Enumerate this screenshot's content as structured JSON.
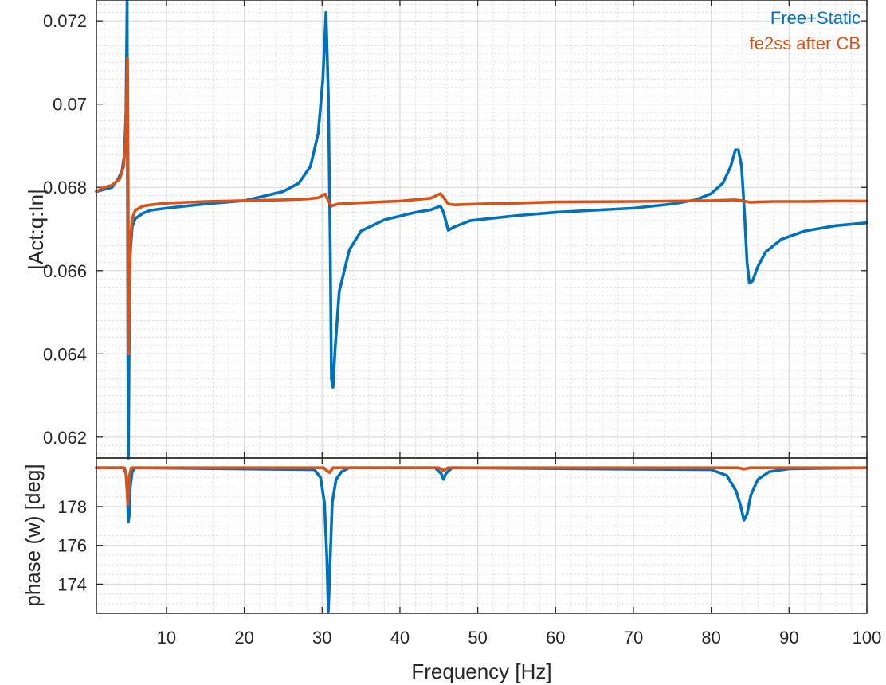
{
  "chart_data": [
    {
      "type": "line",
      "panel": "magnitude",
      "title": "",
      "xlabel": "",
      "ylabel": "|Act:q:In|",
      "xlim": [
        1,
        100
      ],
      "ylim": [
        0.0615,
        0.0725
      ],
      "grid": true,
      "legend_position": "top-right",
      "yticks": [
        0.062,
        0.064,
        0.066,
        0.068,
        0.07,
        0.072
      ],
      "ytick_labels": [
        "0.062",
        "0.064",
        "0.066",
        "0.068",
        "0.07",
        "0.072"
      ],
      "series": [
        {
          "name": "Free+Static",
          "color": "#0072BD",
          "x": [
            1,
            2,
            3,
            3.8,
            4.3,
            4.6,
            4.8,
            4.95,
            5.05,
            5.12,
            5.2,
            5.35,
            5.6,
            6,
            7,
            8,
            10,
            15,
            20,
            25,
            27,
            28.5,
            29.5,
            30.1,
            30.5,
            30.8,
            31.05,
            31.2,
            31.4,
            31.7,
            32.2,
            33.5,
            35,
            38,
            42,
            44,
            45.2,
            45.6,
            46.2,
            47,
            49,
            55,
            60,
            70,
            75,
            78,
            80,
            81.5,
            82.5,
            83.1,
            83.5,
            83.9,
            84.3,
            84.6,
            84.9,
            85.3,
            86,
            87,
            89,
            92,
            96,
            100
          ],
          "values": [
            0.0679,
            0.06795,
            0.068,
            0.0682,
            0.0684,
            0.0688,
            0.0698,
            0.0725,
            0.064,
            0.0615,
            0.064,
            0.0664,
            0.06705,
            0.06725,
            0.06738,
            0.06745,
            0.0675,
            0.0676,
            0.06768,
            0.0679,
            0.0681,
            0.0685,
            0.0693,
            0.0706,
            0.0722,
            0.0702,
            0.0665,
            0.0634,
            0.0632,
            0.0642,
            0.0655,
            0.0665,
            0.06695,
            0.06722,
            0.0674,
            0.06746,
            0.06755,
            0.0674,
            0.06697,
            0.06705,
            0.0672,
            0.06732,
            0.0674,
            0.0675,
            0.0676,
            0.0677,
            0.06785,
            0.0681,
            0.0685,
            0.0689,
            0.0689,
            0.0685,
            0.0673,
            0.0662,
            0.0657,
            0.06575,
            0.0661,
            0.06645,
            0.06675,
            0.06695,
            0.06708,
            0.06715
          ]
        },
        {
          "name": "fe2ss after CB",
          "color": "#D95319",
          "x": [
            1,
            2,
            3,
            4,
            4.5,
            4.75,
            4.9,
            5.0,
            5.08,
            5.15,
            5.25,
            5.4,
            5.6,
            6,
            7,
            8,
            10,
            15,
            20,
            25,
            28,
            29.5,
            30.4,
            30.8,
            31.2,
            32,
            35,
            40,
            44,
            45.2,
            45.6,
            46.2,
            47,
            50,
            55,
            60,
            70,
            80,
            83,
            84,
            85,
            86,
            88,
            92,
            96,
            100
          ],
          "values": [
            0.0679,
            0.068,
            0.06805,
            0.0682,
            0.0685,
            0.0691,
            0.0703,
            0.0711,
            0.068,
            0.064,
            0.0655,
            0.0668,
            0.06725,
            0.06745,
            0.06755,
            0.06758,
            0.06762,
            0.06766,
            0.06768,
            0.0677,
            0.06772,
            0.06775,
            0.06784,
            0.06768,
            0.06755,
            0.0676,
            0.06763,
            0.06767,
            0.06774,
            0.06785,
            0.06776,
            0.0676,
            0.06758,
            0.0676,
            0.06762,
            0.06765,
            0.06766,
            0.06768,
            0.0677,
            0.06768,
            0.06764,
            0.06765,
            0.06766,
            0.06766,
            0.06767,
            0.06767
          ]
        }
      ]
    },
    {
      "type": "line",
      "panel": "phase",
      "title": "",
      "xlabel": "Frequency [Hz]",
      "ylabel": "phase (w) [deg]",
      "xlim": [
        1,
        100
      ],
      "ylim": [
        172.5,
        180.5
      ],
      "grid": true,
      "xticks": [
        10,
        20,
        30,
        40,
        50,
        60,
        70,
        80,
        90,
        100
      ],
      "xtick_labels": [
        "10",
        "20",
        "30",
        "40",
        "50",
        "60",
        "70",
        "80",
        "90",
        "100"
      ],
      "yticks": [
        174,
        176,
        178
      ],
      "ytick_labels": [
        "174",
        "176",
        "178"
      ],
      "series": [
        {
          "name": "Free+Static",
          "color": "#0072BD",
          "x": [
            1,
            4.5,
            4.8,
            5.0,
            5.1,
            5.2,
            5.35,
            5.6,
            6,
            29,
            29.8,
            30.3,
            30.6,
            30.8,
            31.0,
            31.3,
            31.8,
            32.5,
            33.5,
            44.5,
            45.3,
            45.6,
            45.9,
            46.7,
            80,
            82,
            83.2,
            83.8,
            84.2,
            84.6,
            85.1,
            86,
            87.5,
            90,
            100
          ],
          "values": [
            180,
            180,
            179.7,
            178.5,
            177.2,
            177.5,
            179,
            179.8,
            180,
            179.9,
            179.5,
            178.2,
            175.5,
            172.6,
            174.8,
            178.2,
            179.4,
            179.8,
            180,
            180,
            179.7,
            179.4,
            179.7,
            180,
            179.9,
            179.6,
            178.8,
            178.0,
            177.3,
            177.6,
            178.6,
            179.4,
            179.8,
            179.95,
            180
          ]
        },
        {
          "name": "fe2ss after CB",
          "color": "#D95319",
          "x": [
            1,
            4.6,
            4.85,
            5.05,
            5.25,
            5.5,
            6,
            30.2,
            30.6,
            31.0,
            31.4,
            45.0,
            45.6,
            46.2,
            83.5,
            84.2,
            85,
            100
          ],
          "values": [
            180,
            180,
            179.6,
            178.1,
            179.6,
            180,
            180,
            180,
            179.85,
            179.75,
            180,
            180,
            179.85,
            180,
            180,
            179.93,
            180,
            180
          ]
        }
      ]
    }
  ]
}
